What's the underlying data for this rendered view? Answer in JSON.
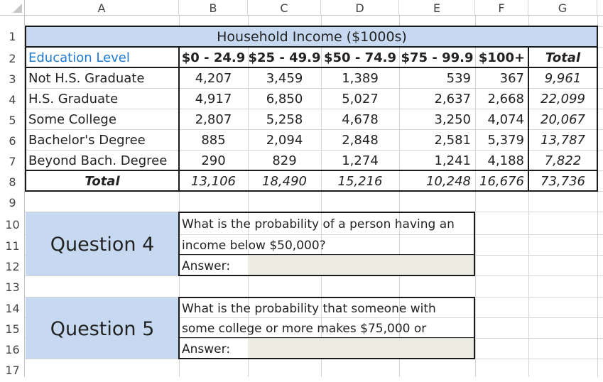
{
  "columns": [
    "A",
    "B",
    "C",
    "D",
    "E",
    "F",
    "G"
  ],
  "rows": [
    "1",
    "2",
    "3",
    "4",
    "5",
    "6",
    "7",
    "8",
    "9",
    "10",
    "11",
    "12",
    "13",
    "14",
    "15",
    "16",
    "17"
  ],
  "table": {
    "title": "Household Income ($1000s)",
    "header_label": "Education Level",
    "brackets": [
      "$0 - 24.9",
      "$25 - 49.9",
      "$50 - 74.9",
      "$75 - 99.9",
      "$100+"
    ],
    "total_label": "Total",
    "data_rows": [
      {
        "label": "Not H.S. Graduate",
        "values": [
          "4,207",
          "3,459",
          "1,389",
          "539",
          "367"
        ],
        "total": "9,961"
      },
      {
        "label": "H.S. Graduate",
        "values": [
          "4,917",
          "6,850",
          "5,027",
          "2,637",
          "2,668"
        ],
        "total": "22,099"
      },
      {
        "label": "Some College",
        "values": [
          "2,807",
          "5,258",
          "4,678",
          "3,250",
          "4,074"
        ],
        "total": "20,067"
      },
      {
        "label": "Bachelor's Degree",
        "values": [
          "885",
          "2,094",
          "2,848",
          "2,581",
          "5,379"
        ],
        "total": "13,787"
      },
      {
        "label": "Beyond Bach. Degree",
        "values": [
          "290",
          "829",
          "1,274",
          "1,241",
          "4,188"
        ],
        "total": "7,822"
      }
    ],
    "totals_row": {
      "label": "Total",
      "values": [
        "13,106",
        "18,490",
        "15,216",
        "10,248",
        "16,676"
      ],
      "total": "73,736"
    }
  },
  "questions": [
    {
      "title": "Question 4",
      "line1": "What is the probability of a person having an",
      "line2": "income below $50,000?",
      "answer_label": "Answer:",
      "answer_value": ""
    },
    {
      "title": "Question 5",
      "line1": "What is the probability that someone with",
      "line2": "some college or more makes $75,000 or",
      "answer_label": "Answer:",
      "answer_value": ""
    }
  ],
  "colors": {
    "header_fill": "#c6d9f0",
    "answer_fill": "#eeece1",
    "link_text": "#1f7ad2",
    "gridline": "#d4d4d4"
  }
}
